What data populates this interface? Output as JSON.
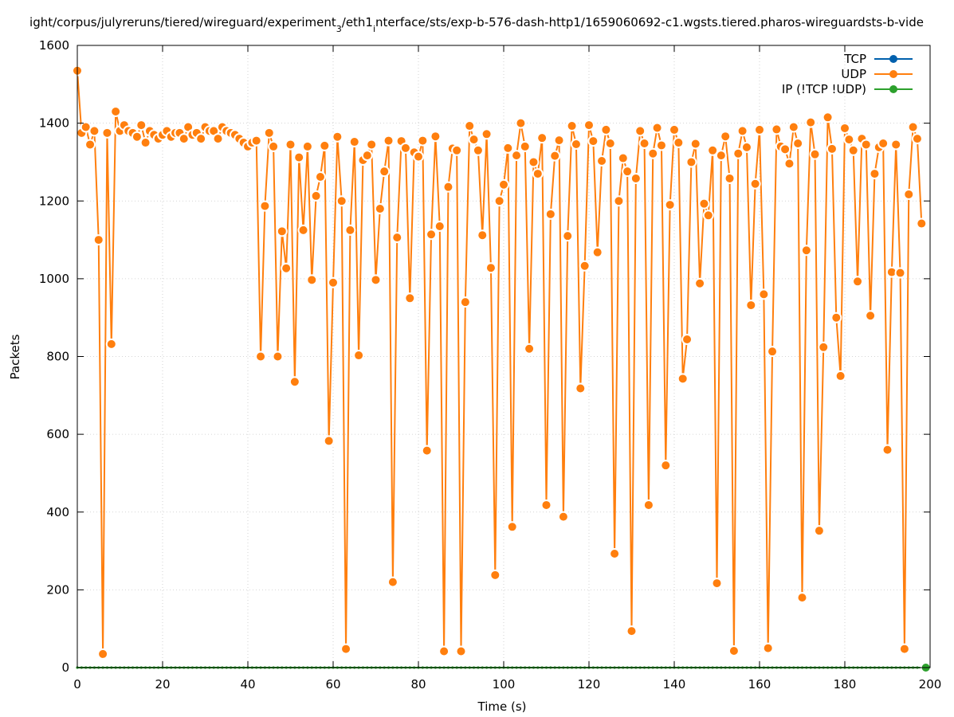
{
  "chart_data": {
    "type": "line",
    "title_parts": [
      "ight/corpus/julyreruns/tiered/wireguard/experiment",
      "3",
      "/eth1",
      "i",
      "nterface/sts/exp-b-576-dash-http1/1659060692-c1.wgsts.tiered.pharos-wireguardsts-b-vide"
    ],
    "xlabel": "Time (s)",
    "ylabel": "Packets",
    "xlim": [
      0,
      200
    ],
    "ylim": [
      0,
      1600
    ],
    "x_ticks": [
      0,
      20,
      40,
      60,
      80,
      100,
      120,
      140,
      160,
      180,
      200
    ],
    "y_ticks": [
      0,
      200,
      400,
      600,
      800,
      1000,
      1200,
      1400,
      1600
    ],
    "grid": true,
    "legend_position": "top-right",
    "colors": {
      "tcp": "#0060ad",
      "udp": "#ff7f0e",
      "ip": "#2ca02c"
    },
    "series": [
      {
        "name": "TCP",
        "color": "#0060ad",
        "values": [
          0,
          0,
          0,
          0,
          0,
          0,
          0,
          0,
          0,
          0,
          0,
          0,
          0,
          0,
          0,
          0,
          0,
          0,
          0,
          0,
          0,
          0,
          0,
          0,
          0,
          0,
          0,
          0,
          0,
          0,
          0,
          0,
          0,
          0,
          0,
          0,
          0,
          0,
          0,
          0,
          0,
          0,
          0,
          0,
          0,
          0,
          0,
          0,
          0,
          0,
          0,
          0,
          0,
          0,
          0,
          0,
          0,
          0,
          0,
          0,
          0,
          0,
          0,
          0,
          0,
          0,
          0,
          0,
          0,
          0,
          0,
          0,
          0,
          0,
          0,
          0,
          0,
          0,
          0,
          0,
          0,
          0,
          0,
          0,
          0,
          0,
          0,
          0,
          0,
          0,
          0,
          0,
          0,
          0,
          0,
          0,
          0,
          0,
          0,
          0,
          0,
          0,
          0,
          0,
          0,
          0,
          0,
          0,
          0,
          0,
          0,
          0,
          0,
          0,
          0,
          0,
          0,
          0,
          0,
          0,
          0,
          0,
          0,
          0,
          0,
          0,
          0,
          0,
          0,
          0,
          0,
          0,
          0,
          0,
          0,
          0,
          0,
          0,
          0,
          0,
          0,
          0,
          0,
          0,
          0,
          0,
          0,
          0,
          0,
          0,
          0,
          0,
          0,
          0,
          0,
          0,
          0,
          0,
          0,
          0,
          0,
          0,
          0,
          0,
          0,
          0,
          0,
          0,
          0,
          0,
          0,
          0,
          0,
          0,
          0,
          0,
          0,
          0,
          0,
          0,
          0,
          0,
          0,
          0,
          0,
          0,
          0,
          0,
          0,
          0,
          0,
          0,
          0,
          0,
          0,
          0,
          0,
          0,
          0,
          0
        ]
      },
      {
        "name": "UDP",
        "color": "#ff7f0e",
        "values": [
          1535,
          1375,
          1390,
          1345,
          1380,
          1100,
          35,
          1375,
          832,
          1430,
          1380,
          1395,
          1380,
          1375,
          1365,
          1395,
          1350,
          1380,
          1370,
          1360,
          1370,
          1380,
          1365,
          1375,
          1375,
          1360,
          1390,
          1370,
          1375,
          1360,
          1390,
          1380,
          1380,
          1360,
          1390,
          1380,
          1375,
          1370,
          1360,
          1350,
          1340,
          1350,
          1355,
          800,
          1187,
          1375,
          1340,
          800,
          1122,
          1027,
          1345,
          735,
          1312,
          1125,
          1340,
          997,
          1213,
          1262,
          1342,
          583,
          990,
          1365,
          1200,
          48,
          1125,
          1352,
          803,
          1305,
          1317,
          1345,
          997,
          1180,
          1276,
          1355,
          220,
          1106,
          1354,
          1336,
          950,
          1325,
          1314,
          1355,
          558,
          1114,
          1366,
          1135,
          42,
          1236,
          1335,
          1330,
          42,
          940,
          1393,
          1358,
          1330,
          1112,
          1372,
          1028,
          238,
          1200,
          1242,
          1336,
          362,
          1317,
          1400,
          1340,
          820,
          1300,
          1270,
          1362,
          418,
          1166,
          1316,
          1356,
          388,
          1110,
          1393,
          1346,
          718,
          1033,
          1395,
          1354,
          1068,
          1303,
          1383,
          1348,
          293,
          1200,
          1310,
          1276,
          94,
          1258,
          1380,
          1348,
          418,
          1322,
          1388,
          1343,
          520,
          1190,
          1383,
          1350,
          743,
          844,
          1300,
          1347,
          988,
          1193,
          1163,
          1330,
          217,
          1317,
          1366,
          1258,
          43,
          1322,
          1380,
          1338,
          932,
          1244,
          1383,
          960,
          50,
          813,
          1384,
          1340,
          1333,
          1296,
          1390,
          1348,
          180,
          1073,
          1402,
          1320,
          352,
          824,
          1415,
          1334,
          900,
          750,
          1387,
          1358,
          1330,
          993,
          1360,
          1345,
          905,
          1270,
          1338,
          1348,
          560,
          1017,
          1345,
          1015,
          48,
          1217,
          1390,
          1360,
          1142
        ]
      },
      {
        "name": "IP (!TCP  !UDP)",
        "color": "#2ca02c",
        "values": [
          0,
          0,
          0,
          0,
          0,
          0,
          0,
          0,
          0,
          0,
          0,
          0,
          0,
          0,
          0,
          0,
          0,
          0,
          0,
          0,
          0,
          0,
          0,
          0,
          0,
          0,
          0,
          0,
          0,
          0,
          0,
          0,
          0,
          0,
          0,
          0,
          0,
          0,
          0,
          0,
          0,
          0,
          0,
          0,
          0,
          0,
          0,
          0,
          0,
          0,
          0,
          0,
          0,
          0,
          0,
          0,
          0,
          0,
          0,
          0,
          0,
          0,
          0,
          0,
          0,
          0,
          0,
          0,
          0,
          0,
          0,
          0,
          0,
          0,
          0,
          0,
          0,
          0,
          0,
          0,
          0,
          0,
          0,
          0,
          0,
          0,
          0,
          0,
          0,
          0,
          0,
          0,
          0,
          0,
          0,
          0,
          0,
          0,
          0,
          0,
          0,
          0,
          0,
          0,
          0,
          0,
          0,
          0,
          0,
          0,
          0,
          0,
          0,
          0,
          0,
          0,
          0,
          0,
          0,
          0,
          0,
          0,
          0,
          0,
          0,
          0,
          0,
          0,
          0,
          0,
          0,
          0,
          0,
          0,
          0,
          0,
          0,
          0,
          0,
          0,
          0,
          0,
          0,
          0,
          0,
          0,
          0,
          0,
          0,
          0,
          0,
          0,
          0,
          0,
          0,
          0,
          0,
          0,
          0,
          0,
          0,
          0,
          0,
          0,
          0,
          0,
          0,
          0,
          0,
          0,
          0,
          0,
          0,
          0,
          0,
          0,
          0,
          0,
          0,
          0,
          0,
          0,
          0,
          0,
          0,
          0,
          0,
          0,
          0,
          0,
          0,
          0,
          0,
          0,
          0,
          0,
          0,
          0,
          0,
          0
        ]
      }
    ]
  }
}
